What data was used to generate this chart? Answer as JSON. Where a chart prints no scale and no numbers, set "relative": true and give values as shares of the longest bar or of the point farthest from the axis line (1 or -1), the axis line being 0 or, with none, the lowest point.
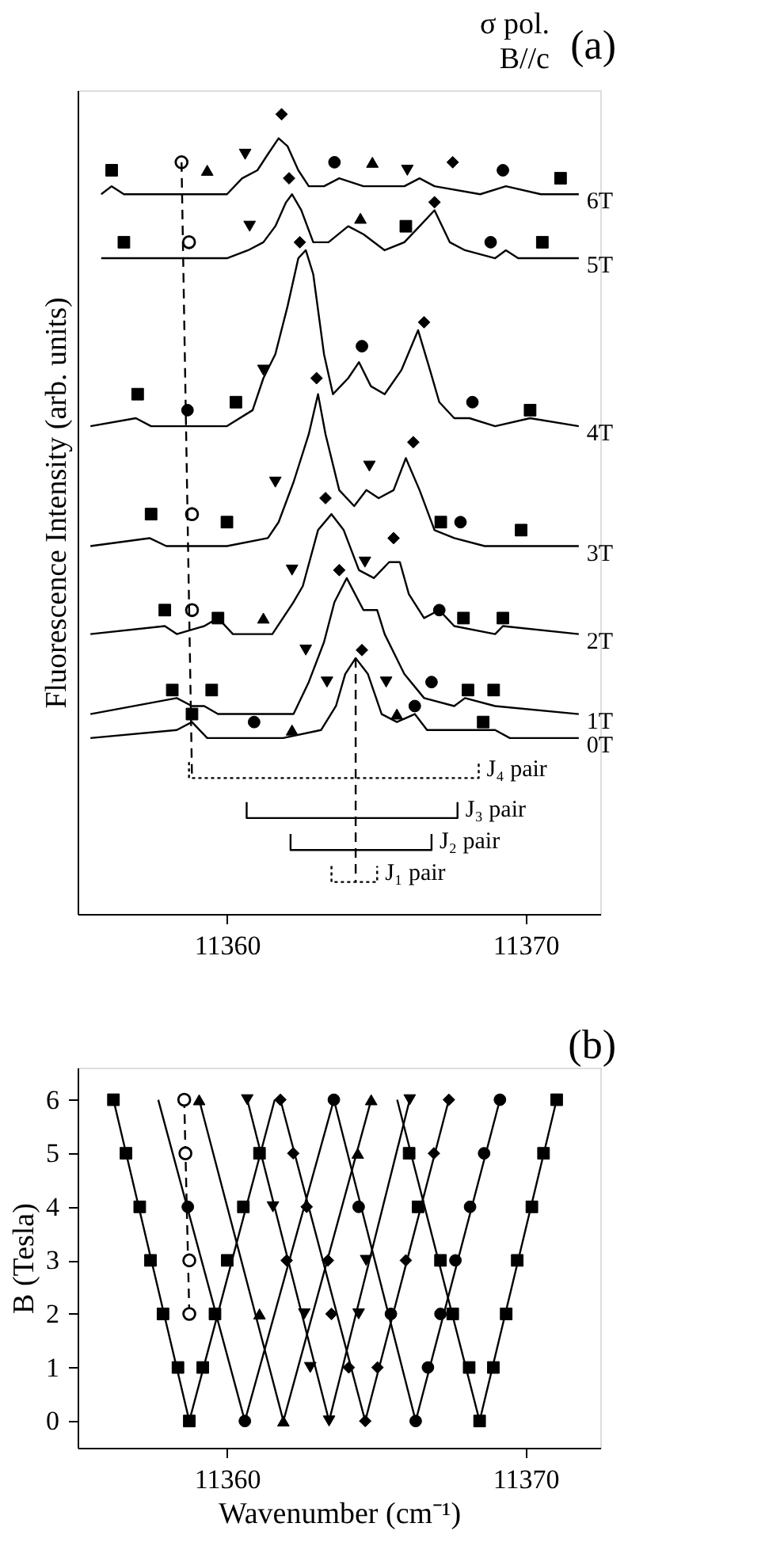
{
  "chart_data": [
    {
      "type": "line",
      "title": "(a)",
      "annotations": [
        "σ pol.",
        "B//c"
      ],
      "ylabel": "Fluorescence Intensity (arb. units)",
      "relative": true,
      "tick_labels": "x",
      "xlim": [
        11355,
        11372.5
      ],
      "xticks": [
        11360,
        11370
      ],
      "series": [
        {
          "name": "6T",
          "color": "#000000",
          "x": [
            11355.79,
            11356.14,
            11356.55,
            11360,
            11360.51,
            11361.02,
            11361.37,
            11361.73,
            11362.03,
            11362.39,
            11362.74,
            11363.25,
            11363.76,
            11364.57,
            11365.28,
            11365.94,
            11366.45,
            11366.95,
            11368.48,
            11369.34,
            11370.51,
            11371.78
          ],
          "values": [
            0.9,
            0.91,
            0.9,
            0.9,
            0.92,
            0.93,
            0.95,
            0.97,
            0.96,
            0.93,
            0.91,
            0.91,
            0.92,
            0.91,
            0.91,
            0.91,
            0.92,
            0.91,
            0.9,
            0.91,
            0.9,
            0.9
          ]
        },
        {
          "name": "5T",
          "color": "#000000",
          "x": [
            11355.79,
            11356.65,
            11357.16,
            11360,
            11360.71,
            11361.22,
            11361.62,
            11361.98,
            11362.18,
            11362.49,
            11362.89,
            11363.4,
            11364.06,
            11364.57,
            11365.28,
            11365.94,
            11366.45,
            11366.95,
            11367.46,
            11367.97,
            11368.98,
            11369.34,
            11369.75,
            11371.78
          ],
          "values": [
            0.82,
            0.82,
            0.82,
            0.82,
            0.83,
            0.84,
            0.86,
            0.89,
            0.9,
            0.88,
            0.84,
            0.84,
            0.86,
            0.85,
            0.83,
            0.84,
            0.86,
            0.88,
            0.84,
            0.83,
            0.82,
            0.83,
            0.82,
            0.82
          ]
        },
        {
          "name": "4T",
          "color": "#000000",
          "x": [
            11355.43,
            11356.95,
            11357.46,
            11360,
            11360.86,
            11361.22,
            11361.62,
            11362.03,
            11362.39,
            11362.64,
            11362.89,
            11363.25,
            11363.55,
            11364.06,
            11364.42,
            11364.82,
            11365.28,
            11365.84,
            11366.4,
            11366.8,
            11367.11,
            11367.61,
            11368.12,
            11368.98,
            11370.15,
            11371.78
          ],
          "values": [
            0.61,
            0.62,
            0.61,
            0.61,
            0.63,
            0.67,
            0.7,
            0.76,
            0.82,
            0.83,
            0.8,
            0.7,
            0.65,
            0.67,
            0.69,
            0.66,
            0.65,
            0.68,
            0.73,
            0.68,
            0.64,
            0.62,
            0.62,
            0.61,
            0.62,
            0.61
          ]
        },
        {
          "name": "3T",
          "color": "#000000",
          "x": [
            11355.43,
            11357.41,
            11357.97,
            11360,
            11361.37,
            11361.73,
            11362.23,
            11362.74,
            11363.05,
            11363.3,
            11363.76,
            11364.26,
            11364.67,
            11365.08,
            11365.58,
            11365.99,
            11366.45,
            11366.95,
            11367.61,
            11368.63,
            11369.75,
            11371.78
          ],
          "values": [
            0.46,
            0.47,
            0.46,
            0.46,
            0.47,
            0.49,
            0.54,
            0.6,
            0.65,
            0.6,
            0.53,
            0.51,
            0.53,
            0.52,
            0.53,
            0.57,
            0.53,
            0.48,
            0.47,
            0.46,
            0.46,
            0.46
          ]
        },
        {
          "name": "2T",
          "color": "#000000",
          "x": [
            11355.43,
            11357.92,
            11358.32,
            11359.24,
            11359.7,
            11360.2,
            11361.52,
            11362.23,
            11362.54,
            11363.05,
            11363.5,
            11363.91,
            11364.42,
            11364.92,
            11365.43,
            11365.79,
            11366.09,
            11366.6,
            11367.11,
            11367.61,
            11368.98,
            11369.24,
            11371.78
          ],
          "values": [
            0.35,
            0.36,
            0.35,
            0.36,
            0.37,
            0.35,
            0.35,
            0.39,
            0.41,
            0.48,
            0.5,
            0.48,
            0.43,
            0.42,
            0.44,
            0.44,
            0.4,
            0.37,
            0.38,
            0.36,
            0.35,
            0.36,
            0.35
          ]
        },
        {
          "name": "1T",
          "color": "#000000",
          "x": [
            11355.43,
            11358.32,
            11358.83,
            11359.24,
            11359.7,
            11362.23,
            11362.74,
            11363.25,
            11363.6,
            11364.01,
            11364.57,
            11365.03,
            11365.28,
            11365.94,
            11366.6,
            11367.61,
            11367.97,
            11368.98,
            11371.78
          ],
          "values": [
            0.25,
            0.27,
            0.26,
            0.26,
            0.25,
            0.25,
            0.29,
            0.34,
            0.39,
            0.42,
            0.38,
            0.38,
            0.35,
            0.3,
            0.27,
            0.26,
            0.27,
            0.26,
            0.25
          ]
        },
        {
          "name": "0T",
          "color": "#000000",
          "x": [
            11355.43,
            11358.32,
            11358.83,
            11359.34,
            11361.88,
            11363.15,
            11363.65,
            11363.96,
            11364.31,
            11364.72,
            11365.18,
            11365.69,
            11366.29,
            11366.7,
            11368.48,
            11368.98,
            11369.47,
            11371.78
          ],
          "values": [
            0.22,
            0.23,
            0.24,
            0.22,
            0.22,
            0.23,
            0.26,
            0.3,
            0.32,
            0.3,
            0.25,
            0.24,
            0.25,
            0.23,
            0.23,
            0.23,
            0.22,
            0.22
          ]
        },
        {
          "type": "scatter",
          "marker": "square",
          "color": "#000000",
          "x": [
            11356.14,
            11371.17,
            11356.55,
            11365.99,
            11370.56,
            11357.01,
            11360.3,
            11370.15,
            11357.46,
            11360,
            11367.16,
            11369.85,
            11357.92,
            11359.7,
            11367.92,
            11369.24,
            11358.17,
            11359.49,
            11368.07,
            11368.93,
            11358.83,
            11368.58
          ],
          "values": [
            0.93,
            0.92,
            0.84,
            0.86,
            0.84,
            0.65,
            0.64,
            0.63,
            0.5,
            0.49,
            0.49,
            0.48,
            0.38,
            0.37,
            0.37,
            0.37,
            0.28,
            0.28,
            0.28,
            0.28,
            0.25,
            0.24
          ]
        },
        {
          "type": "scatter",
          "marker": "circle",
          "color": "#000000",
          "x": [
            11363.6,
            11369.24,
            11368.83,
            11364.52,
            11358.68,
            11368.22,
            11367.82,
            11367.11,
            11366.85,
            11360.91,
            11366.29
          ],
          "values": [
            0.94,
            0.93,
            0.84,
            0.71,
            0.63,
            0.64,
            0.49,
            0.38,
            0.29,
            0.24,
            0.26
          ]
        },
        {
          "type": "scatter",
          "marker": "circle",
          "color": "#ffffff",
          "x": [
            11358.48,
            11358.73,
            11358.83,
            11358.83
          ],
          "values": [
            0.94,
            0.84,
            0.5,
            0.38
          ]
        },
        {
          "type": "scatter",
          "marker": "triangle",
          "color": "#000000",
          "x": [
            11359.34,
            11364.87,
            11364.47,
            11361.22,
            11365.69,
            11362.18
          ],
          "values": [
            0.93,
            0.94,
            0.87,
            0.37,
            0.25,
            0.23
          ]
        },
        {
          "type": "scatter",
          "marker": "triangle-down",
          "color": "#000000",
          "x": [
            11360.61,
            11366.04,
            11360.76,
            11361.22,
            11361.62,
            11364.77,
            11362.18,
            11364.62,
            11362.64,
            11363.35,
            11365.33
          ],
          "values": [
            0.95,
            0.93,
            0.86,
            0.68,
            0.54,
            0.56,
            0.43,
            0.44,
            0.33,
            0.29,
            0.29
          ]
        },
        {
          "type": "scatter",
          "marker": "diamond",
          "color": "#000000",
          "x": [
            11361.83,
            11367.56,
            11362.08,
            11366.95,
            11362.44,
            11366.6,
            11363.0,
            11366.24,
            11363.3,
            11365.58,
            11363.76,
            11364.52
          ],
          "values": [
            1.0,
            0.94,
            0.92,
            0.89,
            0.84,
            0.74,
            0.67,
            0.59,
            0.52,
            0.47,
            0.43,
            0.33
          ]
        },
        {
          "type": "line",
          "line_style": "dashed",
          "color": "#000000",
          "x": [
            11358.48,
            11358.83
          ],
          "values": [
            0.94,
            0.17
          ]
        },
        {
          "type": "line",
          "line_style": "dashed",
          "color": "#000000",
          "x": [
            11364.31,
            11364.31
          ],
          "values": [
            0.32,
            0.04
          ]
        },
        {
          "type": "line",
          "name": "J₄ pair",
          "line_style": "dotted",
          "color": "#000000",
          "x": [
            11358.73,
            11358.73,
            11368.43,
            11368.43
          ],
          "values": [
            0.19,
            0.17,
            0.17,
            0.19
          ]
        },
        {
          "type": "line",
          "name": "J₃ pair",
          "color": "#000000",
          "x": [
            11360.66,
            11360.66,
            11367.72,
            11367.72
          ],
          "values": [
            0.14,
            0.12,
            0.12,
            0.14
          ]
        },
        {
          "type": "line",
          "name": "J₂ pair",
          "color": "#000000",
          "x": [
            11362.13,
            11362.13,
            11366.85,
            11366.85
          ],
          "values": [
            0.1,
            0.08,
            0.08,
            0.1
          ]
        },
        {
          "type": "line",
          "name": "J₁ pair",
          "line_style": "dotted",
          "color": "#000000",
          "x": [
            11363.5,
            11363.5,
            11365.03,
            11365.03
          ],
          "values": [
            0.06,
            0.04,
            0.04,
            0.06
          ]
        }
      ]
    },
    {
      "type": "scatter",
      "title": "(b)",
      "xlabel": "Wavenumber (cm⁻¹)",
      "ylabel": "B (Tesla)",
      "xlim": [
        11355,
        11372.5
      ],
      "xticks": [
        11360,
        11370
      ],
      "ylim": [
        -0.5,
        6.6
      ],
      "yticks": [
        0,
        1,
        2,
        3,
        4,
        5,
        6
      ],
      "series": [
        {
          "type": "line",
          "color": "#000000",
          "x": [
            11358.74,
            11356.2
          ],
          "values": [
            0,
            6
          ]
        },
        {
          "type": "line",
          "color": "#000000",
          "x": [
            11358.74,
            11361.6
          ],
          "values": [
            0,
            6
          ]
        },
        {
          "type": "line",
          "color": "#000000",
          "x": [
            11368.46,
            11371.04
          ],
          "values": [
            0,
            6
          ]
        },
        {
          "type": "line",
          "color": "#000000",
          "x": [
            11368.46,
            11365.7
          ],
          "values": [
            0,
            6
          ]
        },
        {
          "type": "line",
          "color": "#000000",
          "x": [
            11360.6,
            11357.7
          ],
          "values": [
            0,
            6
          ]
        },
        {
          "type": "line",
          "color": "#000000",
          "x": [
            11360.6,
            11363.58
          ],
          "values": [
            0,
            6
          ]
        },
        {
          "type": "line",
          "color": "#000000",
          "x": [
            11366.32,
            11363.58
          ],
          "values": [
            0,
            6
          ]
        },
        {
          "type": "line",
          "color": "#000000",
          "x": [
            11366.32,
            11369.14
          ],
          "values": [
            0,
            6
          ]
        },
        {
          "type": "line",
          "color": "#000000",
          "x": [
            11361.89,
            11359.07
          ],
          "values": [
            0,
            6
          ]
        },
        {
          "type": "line",
          "color": "#000000",
          "x": [
            11361.89,
            11364.83
          ],
          "values": [
            0,
            6
          ]
        },
        {
          "type": "line",
          "color": "#000000",
          "x": [
            11363.42,
            11360.68
          ],
          "values": [
            0,
            6
          ]
        },
        {
          "type": "line",
          "color": "#000000",
          "x": [
            11363.42,
            11366.12
          ],
          "values": [
            0,
            6
          ]
        },
        {
          "type": "line",
          "color": "#000000",
          "x": [
            11364.63,
            11361.79
          ],
          "values": [
            0,
            6
          ]
        },
        {
          "type": "line",
          "color": "#000000",
          "x": [
            11364.63,
            11367.43
          ],
          "values": [
            0,
            6
          ]
        },
        {
          "type": "line",
          "line_style": "dashed",
          "color": "#000000",
          "x": [
            11358.74,
            11358.57
          ],
          "values": [
            2,
            6
          ]
        },
        {
          "marker": "square",
          "color": "#000000",
          "x": [
            11358.74,
            11368.46,
            11358.36,
            11359.19,
            11368.11,
            11368.92,
            11357.86,
            11359.6,
            11367.56,
            11369.35,
            11357.44,
            11360.01,
            11367.15,
            11369.72,
            11357.08,
            11360.55,
            11366.4,
            11370.21,
            11356.62,
            11361.09,
            11366.1,
            11370.6,
            11356.2,
            11371.04
          ],
          "values": [
            0,
            0,
            1,
            1,
            1,
            1,
            2,
            2,
            2,
            2,
            3,
            3,
            3,
            3,
            4,
            4,
            4,
            4,
            5,
            5,
            5,
            5,
            6,
            6
          ]
        },
        {
          "marker": "circle",
          "color": "#000000",
          "x": [
            11360.6,
            11366.32,
            11366.73,
            11365.49,
            11367.15,
            11367.65,
            11358.69,
            11364.41,
            11368.14,
            11368.61,
            11363.58,
            11369.14
          ],
          "values": [
            0,
            0,
            1,
            2,
            2,
            3,
            4,
            4,
            4,
            5,
            6,
            6
          ]
        },
        {
          "marker": "circle",
          "color": "#ffffff",
          "x": [
            11358.74,
            11358.74,
            11358.61,
            11358.57
          ],
          "values": [
            2,
            3,
            5,
            6
          ]
        },
        {
          "marker": "triangle",
          "color": "#000000",
          "x": [
            11361.89,
            11361.09,
            11364.38,
            11359.07,
            11364.83
          ],
          "values": [
            0,
            2,
            5,
            6,
            6
          ]
        },
        {
          "marker": "triangle-down",
          "color": "#000000",
          "x": [
            11363.42,
            11362.79,
            11362.59,
            11364.41,
            11364.66,
            11361.54,
            11360.68,
            11366.12
          ],
          "values": [
            0,
            1,
            2,
            2,
            3,
            4,
            6,
            6
          ]
        },
        {
          "marker": "diamond",
          "color": "#000000",
          "x": [
            11364.63,
            11364.08,
            11365.04,
            11363.5,
            11362.0,
            11363.38,
            11365.99,
            11362.67,
            11362.22,
            11366.93,
            11361.79,
            11367.43
          ],
          "values": [
            0,
            1,
            1,
            2,
            3,
            3,
            3,
            4,
            5,
            5,
            6,
            6
          ]
        }
      ]
    }
  ]
}
